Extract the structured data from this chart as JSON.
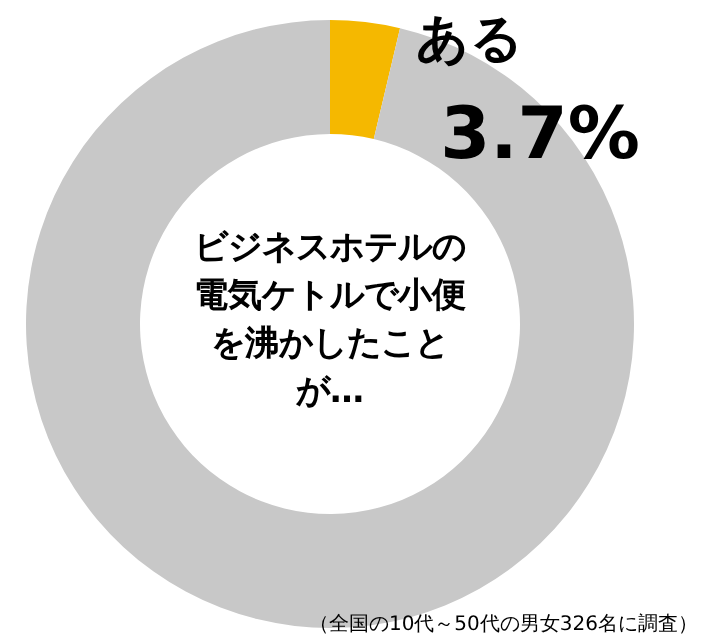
{
  "chart_data": {
    "type": "donut",
    "title": "ビジネスホテルの電気ケトルで小便を沸かしたことが…",
    "categories": [
      "ある",
      null
    ],
    "values": [
      3.7,
      96.3
    ],
    "colors": [
      "#f5b800",
      "#c8c8c8"
    ],
    "value_labels": [
      "3.7%",
      null
    ],
    "annotations": [
      "（全国の10代～50代の男女326名に調査）"
    ]
  }
}
